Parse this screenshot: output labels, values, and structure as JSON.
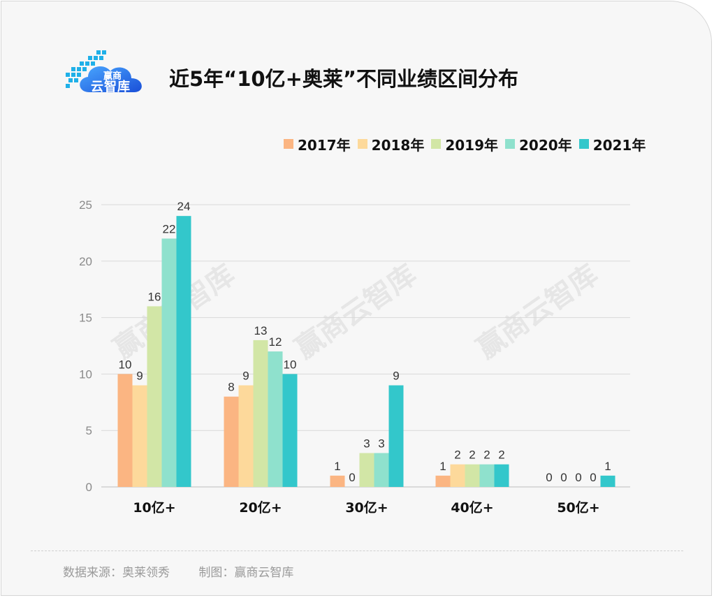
{
  "title": "近5年“10亿+奥莱”不同业绩区间分布",
  "logo": {
    "text_top": "赢商",
    "text_main": "云智库"
  },
  "watermark": "赢商云智库",
  "footer": {
    "source": "数据来源：奥莱领秀",
    "made_by": "制图：赢商云智库"
  },
  "colors": {
    "2017年": "#fbb582",
    "2018年": "#fdd99b",
    "2019年": "#d2e6a6",
    "2020年": "#8fe1cd",
    "2021年": "#33c7cb"
  },
  "chart_data": {
    "type": "bar",
    "title": "近5年“10亿+奥莱”不同业绩区间分布",
    "categories": [
      "10亿+",
      "20亿+",
      "30亿+",
      "40亿+",
      "50亿+"
    ],
    "series": [
      {
        "name": "2017年",
        "values": [
          10,
          8,
          1,
          1,
          0
        ]
      },
      {
        "name": "2018年",
        "values": [
          9,
          9,
          0,
          2,
          0
        ]
      },
      {
        "name": "2019年",
        "values": [
          16,
          13,
          3,
          2,
          0
        ]
      },
      {
        "name": "2020年",
        "values": [
          22,
          12,
          3,
          2,
          0
        ]
      },
      {
        "name": "2021年",
        "values": [
          24,
          10,
          9,
          2,
          1
        ]
      }
    ],
    "yticks": [
      0,
      5,
      10,
      15,
      20,
      25
    ],
    "ylim": [
      0,
      25
    ],
    "xlabel": "",
    "ylabel": "",
    "grid": true,
    "legend": "top-right"
  }
}
